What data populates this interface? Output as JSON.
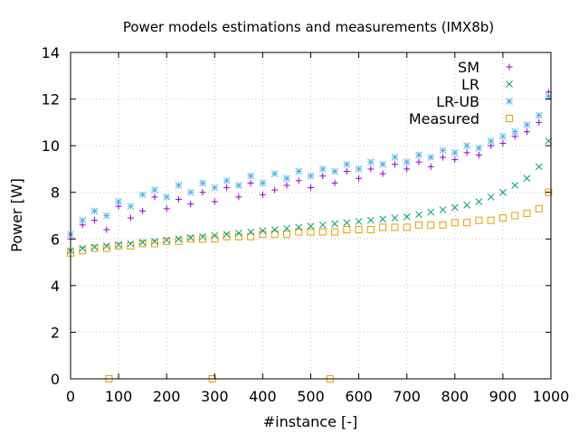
{
  "chart_data": {
    "type": "scatter",
    "title": "Power models estimations and measurements (IMX8b)",
    "xlabel": "#instance [-]",
    "ylabel": "Power [W]",
    "xlim": [
      0,
      1000
    ],
    "ylim": [
      0,
      14
    ],
    "xticks": [
      0,
      100,
      200,
      300,
      400,
      500,
      600,
      700,
      800,
      900,
      1000
    ],
    "yticks": [
      0,
      2,
      4,
      6,
      8,
      10,
      12,
      14
    ],
    "grid": true,
    "legend_position": "top-right",
    "series": [
      {
        "name": "SM",
        "marker": "plus",
        "color": "#9400d3",
        "x": [
          0,
          25,
          50,
          75,
          100,
          125,
          150,
          175,
          200,
          225,
          250,
          275,
          300,
          325,
          350,
          375,
          400,
          425,
          450,
          475,
          500,
          525,
          550,
          575,
          600,
          625,
          650,
          675,
          700,
          725,
          750,
          775,
          800,
          825,
          850,
          875,
          900,
          925,
          950,
          975,
          995
        ],
        "y": [
          6.0,
          6.6,
          6.8,
          6.4,
          7.4,
          6.9,
          7.2,
          7.8,
          7.3,
          7.7,
          7.5,
          8.0,
          7.6,
          8.2,
          7.8,
          8.4,
          7.9,
          8.1,
          8.3,
          8.5,
          8.2,
          8.7,
          8.4,
          8.9,
          8.6,
          9.0,
          8.8,
          9.2,
          9.0,
          9.3,
          9.1,
          9.5,
          9.4,
          9.7,
          9.6,
          10.0,
          10.1,
          10.4,
          10.6,
          11.0,
          12.3
        ]
      },
      {
        "name": "LR",
        "marker": "cross",
        "color": "#009e73",
        "x": [
          0,
          25,
          50,
          75,
          100,
          125,
          150,
          175,
          200,
          225,
          250,
          275,
          300,
          325,
          350,
          375,
          400,
          425,
          450,
          475,
          500,
          525,
          550,
          575,
          600,
          625,
          650,
          675,
          700,
          725,
          750,
          775,
          800,
          825,
          850,
          875,
          900,
          925,
          950,
          975,
          995
        ],
        "y": [
          5.5,
          5.6,
          5.65,
          5.7,
          5.75,
          5.8,
          5.85,
          5.9,
          5.95,
          6.0,
          6.05,
          6.1,
          6.15,
          6.2,
          6.25,
          6.3,
          6.35,
          6.4,
          6.45,
          6.5,
          6.55,
          6.6,
          6.65,
          6.7,
          6.75,
          6.8,
          6.85,
          6.9,
          6.95,
          7.05,
          7.15,
          7.25,
          7.35,
          7.45,
          7.6,
          7.8,
          8.0,
          8.3,
          8.6,
          9.1,
          10.2
        ]
      },
      {
        "name": "LR-UB",
        "marker": "star",
        "color": "#56b4e9",
        "x": [
          0,
          25,
          50,
          75,
          100,
          125,
          150,
          175,
          200,
          225,
          250,
          275,
          300,
          325,
          350,
          375,
          400,
          425,
          450,
          475,
          500,
          525,
          550,
          575,
          600,
          625,
          650,
          675,
          700,
          725,
          750,
          775,
          800,
          825,
          850,
          875,
          900,
          925,
          950,
          975,
          995
        ],
        "y": [
          6.2,
          6.8,
          7.2,
          7.0,
          7.6,
          7.4,
          7.9,
          8.1,
          7.8,
          8.3,
          8.0,
          8.4,
          8.2,
          8.5,
          8.3,
          8.7,
          8.4,
          8.8,
          8.6,
          8.9,
          8.7,
          9.0,
          8.9,
          9.2,
          9.0,
          9.3,
          9.2,
          9.5,
          9.3,
          9.6,
          9.5,
          9.8,
          9.7,
          10.0,
          9.9,
          10.2,
          10.4,
          10.6,
          10.9,
          11.3,
          12.1
        ]
      },
      {
        "name": "Measured",
        "marker": "square",
        "color": "#e69f00",
        "x": [
          0,
          25,
          50,
          75,
          80,
          100,
          125,
          150,
          175,
          200,
          225,
          250,
          275,
          295,
          300,
          325,
          350,
          375,
          400,
          425,
          450,
          475,
          500,
          525,
          540,
          550,
          575,
          600,
          625,
          650,
          675,
          700,
          725,
          750,
          775,
          800,
          825,
          850,
          875,
          900,
          925,
          950,
          975,
          995
        ],
        "y": [
          5.4,
          5.5,
          5.6,
          5.6,
          0.0,
          5.7,
          5.7,
          5.8,
          5.8,
          5.9,
          5.9,
          6.0,
          6.0,
          0.0,
          6.0,
          6.1,
          6.1,
          6.1,
          6.2,
          6.2,
          6.2,
          6.3,
          6.3,
          6.3,
          0.0,
          6.3,
          6.4,
          6.4,
          6.4,
          6.5,
          6.5,
          6.5,
          6.6,
          6.6,
          6.6,
          6.7,
          6.7,
          6.8,
          6.8,
          6.9,
          7.0,
          7.1,
          7.3,
          8.0
        ]
      }
    ]
  }
}
